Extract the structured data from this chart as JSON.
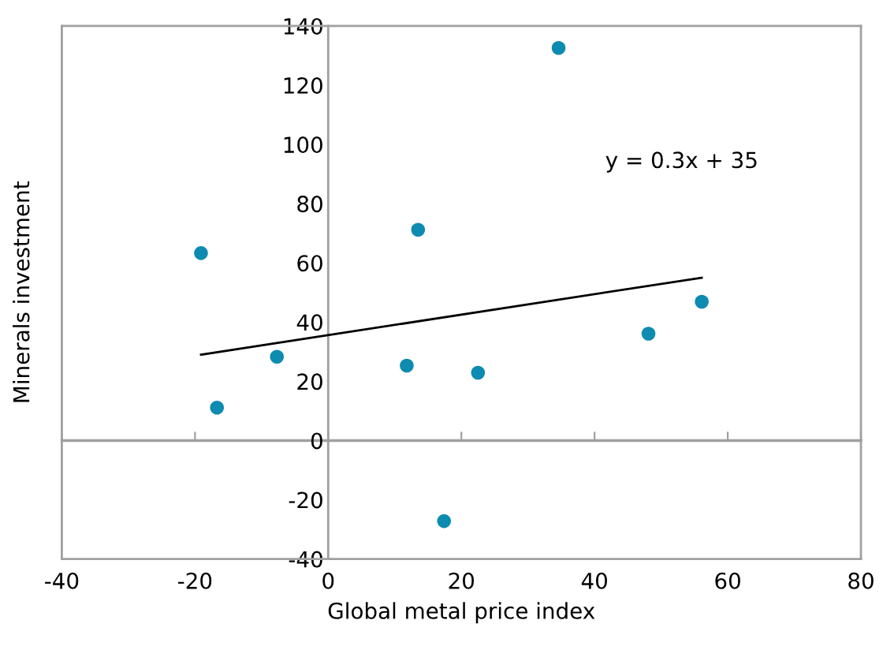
{
  "chart_data": {
    "type": "scatter",
    "xlabel": "Global metal price index",
    "ylabel": "Minerals investment",
    "series": [
      {
        "color": "#0e8bb0",
        "marker": "circle",
        "x": [
          -19.1,
          -16.7,
          -7.7,
          13.5,
          11.8,
          17.4,
          22.5,
          34.6,
          48.1,
          56.1
        ],
        "values": [
          63.3,
          11.1,
          28.3,
          71.2,
          25.3,
          -27.2,
          22.9,
          132.6,
          36.1,
          46.9
        ]
      },
      {
        "type": "line",
        "color": "#000000",
        "x": [
          -19.1,
          56.1
        ],
        "values": [
          29,
          55
        ]
      }
    ],
    "annotations": [
      "y = 0.3x + 35"
    ],
    "xlim": [
      -40,
      80
    ],
    "xticks": [
      -40,
      -20,
      0,
      20,
      40,
      60,
      80
    ],
    "ylim": [
      -40,
      140
    ],
    "yticks": [
      -40,
      -20,
      0,
      20,
      40,
      60,
      80,
      100,
      120,
      140
    ],
    "legend": false
  }
}
